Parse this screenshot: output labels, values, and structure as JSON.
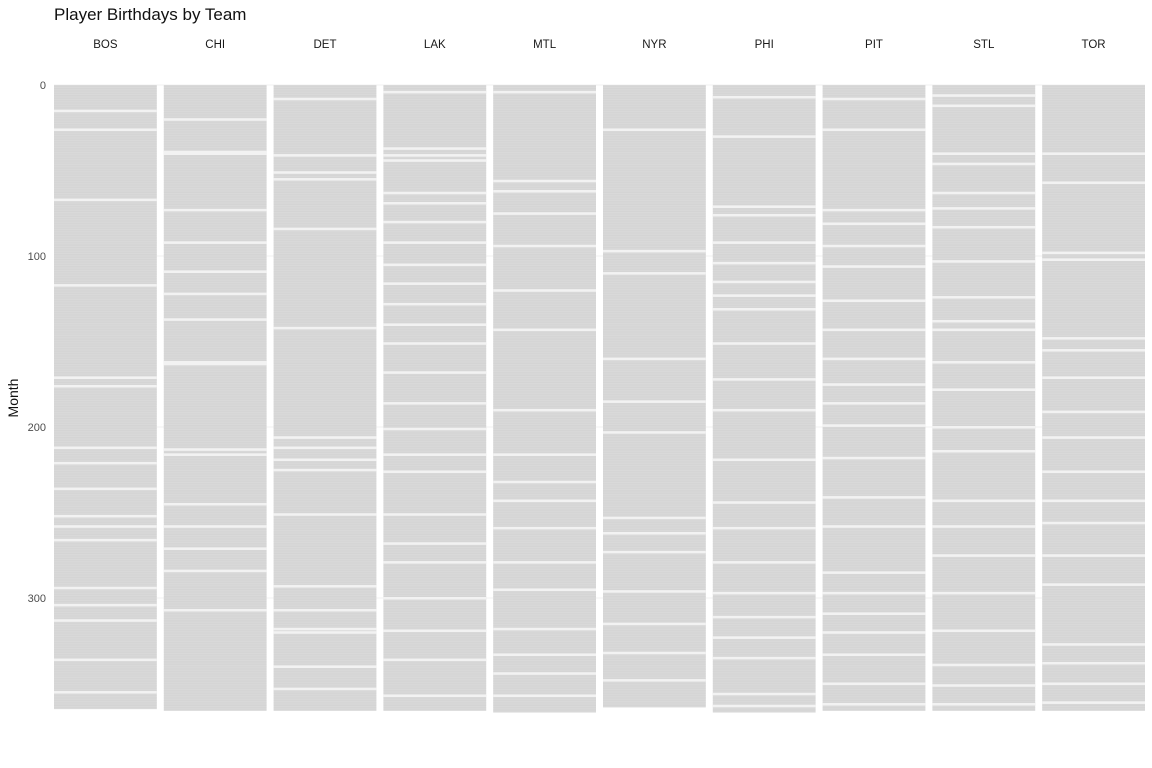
{
  "chart_data": {
    "type": "heatmap",
    "title": "Player Birthdays by Team",
    "ylabel": "Month",
    "xlabel": "",
    "ylim": [
      0,
      366
    ],
    "y_reversed": true,
    "y_ticks": [
      0,
      100,
      200,
      300
    ],
    "grid": true,
    "legend": "none",
    "fill_color": "#d9d9d9",
    "gap_color": "#f2f2f2",
    "facets": [
      {
        "team": "BOS",
        "max": 365,
        "gaps": [
          15,
          26,
          67,
          117,
          171,
          176,
          212,
          221,
          236,
          252,
          258,
          266,
          294,
          304,
          313,
          336,
          355
        ]
      },
      {
        "team": "CHI",
        "max": 366,
        "gaps": [
          20,
          39,
          40,
          73,
          92,
          109,
          122,
          137,
          162,
          163,
          213,
          216,
          245,
          258,
          271,
          284,
          307
        ]
      },
      {
        "team": "DET",
        "max": 366,
        "gaps": [
          8,
          41,
          51,
          55,
          84,
          142,
          206,
          212,
          219,
          225,
          251,
          293,
          307,
          318,
          320,
          340,
          353
        ]
      },
      {
        "team": "LAK",
        "max": 366,
        "gaps": [
          4,
          37,
          41,
          44,
          63,
          69,
          80,
          92,
          105,
          116,
          128,
          140,
          151,
          168,
          186,
          201,
          216,
          226,
          251,
          268,
          279,
          300,
          319,
          336,
          357
        ]
      },
      {
        "team": "MTL",
        "max": 367,
        "gaps": [
          4,
          56,
          62,
          75,
          94,
          120,
          143,
          190,
          216,
          232,
          243,
          259,
          279,
          295,
          318,
          333,
          344,
          357
        ]
      },
      {
        "team": "NYR",
        "max": 364,
        "gaps": [
          26,
          97,
          110,
          160,
          185,
          203,
          253,
          262,
          273,
          296,
          315,
          332,
          348
        ]
      },
      {
        "team": "PHI",
        "max": 367,
        "gaps": [
          7,
          30,
          71,
          76,
          92,
          104,
          115,
          123,
          131,
          151,
          172,
          190,
          219,
          244,
          259,
          279,
          297,
          311,
          323,
          335,
          356,
          363
        ]
      },
      {
        "team": "PIT",
        "max": 366,
        "gaps": [
          8,
          26,
          73,
          81,
          94,
          106,
          126,
          143,
          160,
          175,
          186,
          199,
          218,
          241,
          258,
          285,
          297,
          309,
          320,
          333,
          350,
          362
        ]
      },
      {
        "team": "STL",
        "max": 366,
        "gaps": [
          6,
          12,
          40,
          46,
          63,
          72,
          83,
          103,
          124,
          138,
          143,
          162,
          178,
          200,
          214,
          243,
          258,
          275,
          297,
          319,
          339,
          351,
          362
        ]
      },
      {
        "team": "TOR",
        "max": 366,
        "gaps": [
          40,
          57,
          98,
          102,
          148,
          155,
          171,
          191,
          206,
          226,
          243,
          256,
          275,
          292,
          327,
          338,
          350,
          361
        ]
      }
    ]
  }
}
